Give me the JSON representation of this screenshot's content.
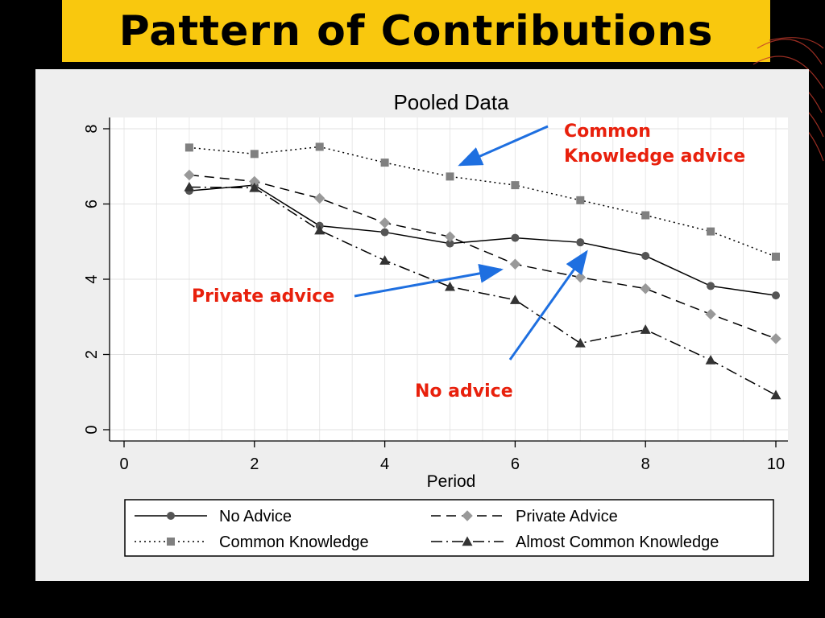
{
  "slide": {
    "title": "Pattern of Contributions"
  },
  "colors": {
    "title_bg": "#f9c80e",
    "annotation": "#e8200c",
    "arrow": "#1e6fe0",
    "panel_bg": "#eeeeee"
  },
  "annotations": {
    "common_line1": "Common",
    "common_line2": "Knowledge advice",
    "private": "Private advice",
    "no_advice": "No advice"
  },
  "chart_data": {
    "type": "line",
    "title": "Pooled Data",
    "xlabel": "Period",
    "ylabel": "",
    "xlim": [
      0,
      10
    ],
    "ylim": [
      0,
      8
    ],
    "x_ticks": [
      "0",
      "2",
      "4",
      "6",
      "8",
      "10"
    ],
    "y_ticks": [
      "0",
      "2",
      "4",
      "6",
      "8"
    ],
    "grid": true,
    "legend_position": "bottom",
    "x": [
      1,
      2,
      3,
      4,
      5,
      6,
      7,
      8,
      9,
      10
    ],
    "series": [
      {
        "name": "No Advice",
        "marker": "circle",
        "dash": "solid",
        "color": "#555555",
        "values": [
          6.35,
          6.5,
          5.42,
          5.25,
          4.95,
          5.1,
          4.98,
          4.62,
          3.82,
          3.57
        ]
      },
      {
        "name": "Private Advice",
        "marker": "diamond",
        "dash": "dashed",
        "color": "#999999",
        "values": [
          6.77,
          6.6,
          6.15,
          5.5,
          5.13,
          4.4,
          4.05,
          3.75,
          3.07,
          2.42
        ]
      },
      {
        "name": "Common Knowledge",
        "marker": "square",
        "dash": "dotted",
        "color": "#808080",
        "values": [
          7.5,
          7.33,
          7.52,
          7.1,
          6.73,
          6.5,
          6.1,
          5.7,
          5.27,
          4.6
        ]
      },
      {
        "name": "Almost Common Knowledge",
        "marker": "triangle",
        "dash": "dashdot",
        "color": "#333333",
        "values": [
          6.45,
          6.43,
          5.3,
          4.5,
          3.8,
          3.45,
          2.3,
          2.66,
          1.85,
          0.92
        ]
      }
    ]
  }
}
